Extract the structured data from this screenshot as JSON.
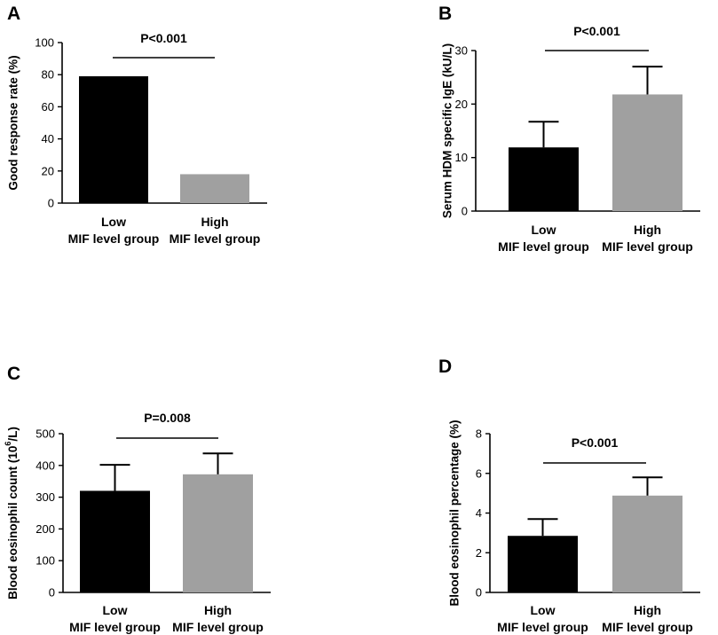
{
  "chart_data": [
    {
      "panel": "A",
      "type": "bar",
      "categories": [
        [
          "Low",
          "MIF level group"
        ],
        [
          "High",
          "MIF level group"
        ]
      ],
      "values": [
        79,
        18
      ],
      "errors": [
        null,
        null
      ],
      "ylabel": "Good response rate (%)",
      "ylim": [
        0,
        100
      ],
      "yticks": [
        0,
        20,
        40,
        60,
        80,
        100
      ],
      "colors": [
        "#000000",
        "#a0a0a0"
      ],
      "pvalue": "P<0.001"
    },
    {
      "panel": "B",
      "type": "bar",
      "categories": [
        [
          "Low",
          "MIF level group"
        ],
        [
          "High",
          "MIF level group"
        ]
      ],
      "values": [
        11.9,
        21.8
      ],
      "errors": [
        4.8,
        5.2
      ],
      "ylabel": "Serum HDM specific IgE (kU/L)",
      "ylim": [
        0,
        30
      ],
      "yticks": [
        0,
        10,
        20,
        30
      ],
      "colors": [
        "#000000",
        "#a0a0a0"
      ],
      "pvalue": "P<0.001"
    },
    {
      "panel": "C",
      "type": "bar",
      "categories": [
        [
          "Low",
          "MIF level group"
        ],
        [
          "High",
          "MIF level group"
        ]
      ],
      "values": [
        320,
        372
      ],
      "errors": [
        82,
        66
      ],
      "ylabel": "Blood eosinophil count (10^6/L)",
      "ylabel_parts": [
        "Blood eosinophil count (10",
        "6",
        "/L)"
      ],
      "ylim": [
        0,
        500
      ],
      "yticks": [
        0,
        100,
        200,
        300,
        400,
        500
      ],
      "colors": [
        "#000000",
        "#a0a0a0"
      ],
      "pvalue": "P=0.008"
    },
    {
      "panel": "D",
      "type": "bar",
      "categories": [
        [
          "Low",
          "MIF level group"
        ],
        [
          "High",
          "MIF level group"
        ]
      ],
      "values": [
        2.85,
        4.88
      ],
      "errors": [
        0.85,
        0.92
      ],
      "ylabel": "Blood eosinophil percentage (%)",
      "ylim": [
        0,
        8
      ],
      "yticks": [
        0,
        2,
        4,
        6,
        8
      ],
      "colors": [
        "#000000",
        "#a0a0a0"
      ],
      "pvalue": "P<0.001"
    }
  ]
}
